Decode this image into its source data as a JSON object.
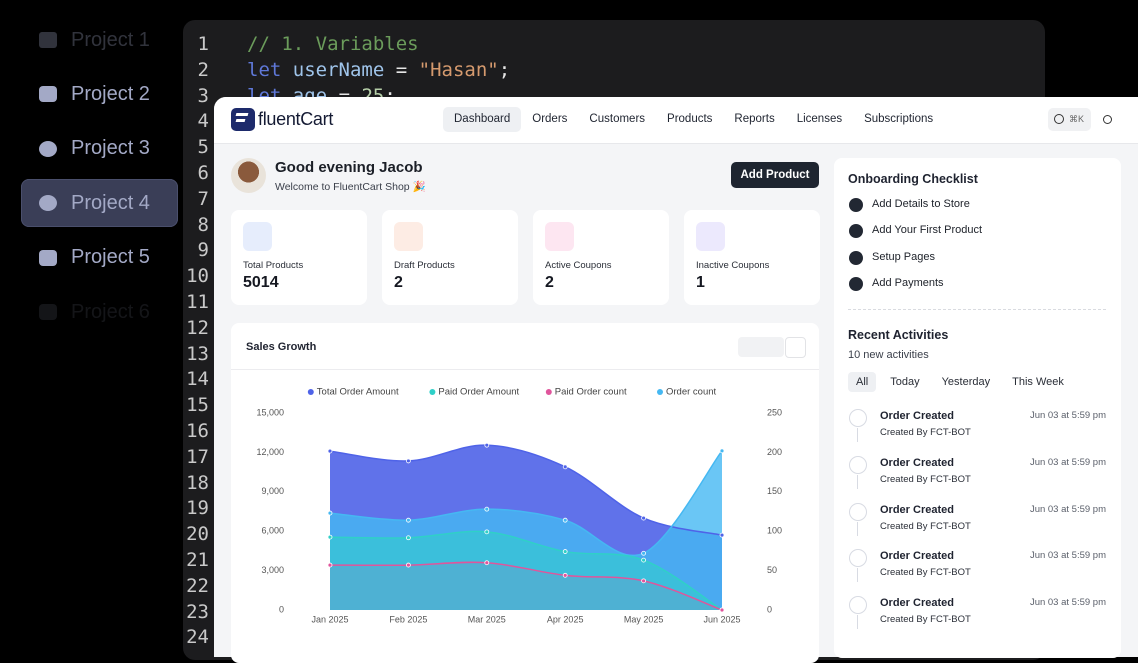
{
  "sidebar": {
    "projects": [
      "Project 1",
      "Project 2",
      "Project 3",
      "Project 4",
      "Project 5",
      "Project 6"
    ]
  },
  "code": {
    "line_numbers": [
      1,
      2,
      3,
      4,
      5,
      6,
      7,
      8,
      9,
      10,
      11,
      12,
      13,
      14,
      15,
      16,
      17,
      18,
      19,
      20,
      21,
      22,
      23,
      24
    ],
    "lines": [
      [
        "// 1. Variables"
      ],
      [
        "let",
        "userName",
        "=",
        "\"Hasan\"",
        ";"
      ],
      [
        "let",
        "age",
        "=",
        "25",
        ";"
      ]
    ]
  },
  "header": {
    "logo": "fluentCart",
    "nav": [
      "Dashboard",
      "Orders",
      "Customers",
      "Products",
      "Reports",
      "Licenses",
      "Subscriptions"
    ],
    "search_shortcut": "⌘K"
  },
  "welcome": {
    "greeting": "Good evening Jacob",
    "subtitle": "Welcome to FluentCart Shop 🎉",
    "button": "Add Product"
  },
  "stats": [
    {
      "label": "Total Products",
      "value": 5014
    },
    {
      "label": "Draft Products",
      "value": 2
    },
    {
      "label": "Active Coupons",
      "value": 2
    },
    {
      "label": "Inactive Coupons",
      "value": 1
    }
  ],
  "chart_data": {
    "type": "area",
    "title": "Sales Growth",
    "categories": [
      "Jan 2025",
      "Feb 2025",
      "Mar 2025",
      "Apr 2025",
      "May 2025",
      "Jun 2025"
    ],
    "series": [
      {
        "name": "Total Order Amount",
        "color": "#4f63e8",
        "values": [
          12100,
          11350,
          12550,
          10900,
          7000,
          5700
        ]
      },
      {
        "name": "Paid Order Amount",
        "color": "#2fd0c8",
        "values": [
          5550,
          5500,
          5950,
          4450,
          3800,
          0
        ]
      },
      {
        "name": "Paid Order count",
        "color": "#e0559c",
        "values": [
          57,
          57,
          60,
          44,
          37,
          0
        ],
        "axis": "y2"
      },
      {
        "name": "Order count",
        "color": "#45b8f2",
        "values": [
          123,
          114,
          128,
          114,
          72,
          202
        ],
        "axis": "y2"
      }
    ],
    "ylim": [
      0,
      15000
    ],
    "yticks": [
      0,
      {
        "value": 3000,
        "label": "3,000"
      },
      {
        "value": 6000,
        "label": "6,000"
      },
      {
        "value": 9000,
        "label": "9,000"
      },
      {
        "value": 12000,
        "label": "12,000"
      },
      {
        "value": 15000,
        "label": "15,000"
      }
    ],
    "y2lim": [
      0,
      250
    ],
    "y2ticks": [
      0,
      50,
      100,
      150,
      200,
      250
    ],
    "grid": false
  },
  "onboarding": {
    "title": "Onboarding Checklist",
    "items": [
      "Add Details to Store",
      "Add Your First Product",
      "Setup Pages",
      "Add Payments"
    ]
  },
  "activities": {
    "title": "Recent Activities",
    "subtitle": "10 new activities",
    "tabs": [
      "All",
      "Today",
      "Yesterday",
      "This Week"
    ],
    "items": [
      {
        "title": "Order Created",
        "by": "Created By FCT-BOT",
        "time": "Jun 03 at 5:59 pm"
      },
      {
        "title": "Order Created",
        "by": "Created By FCT-BOT",
        "time": "Jun 03 at 5:59 pm"
      },
      {
        "title": "Order Created",
        "by": "Created By FCT-BOT",
        "time": "Jun 03 at 5:59 pm"
      },
      {
        "title": "Order Created",
        "by": "Created By FCT-BOT",
        "time": "Jun 03 at 5:59 pm"
      },
      {
        "title": "Order Created",
        "by": "Created By FCT-BOT",
        "time": "Jun 03 at 5:59 pm"
      }
    ]
  }
}
